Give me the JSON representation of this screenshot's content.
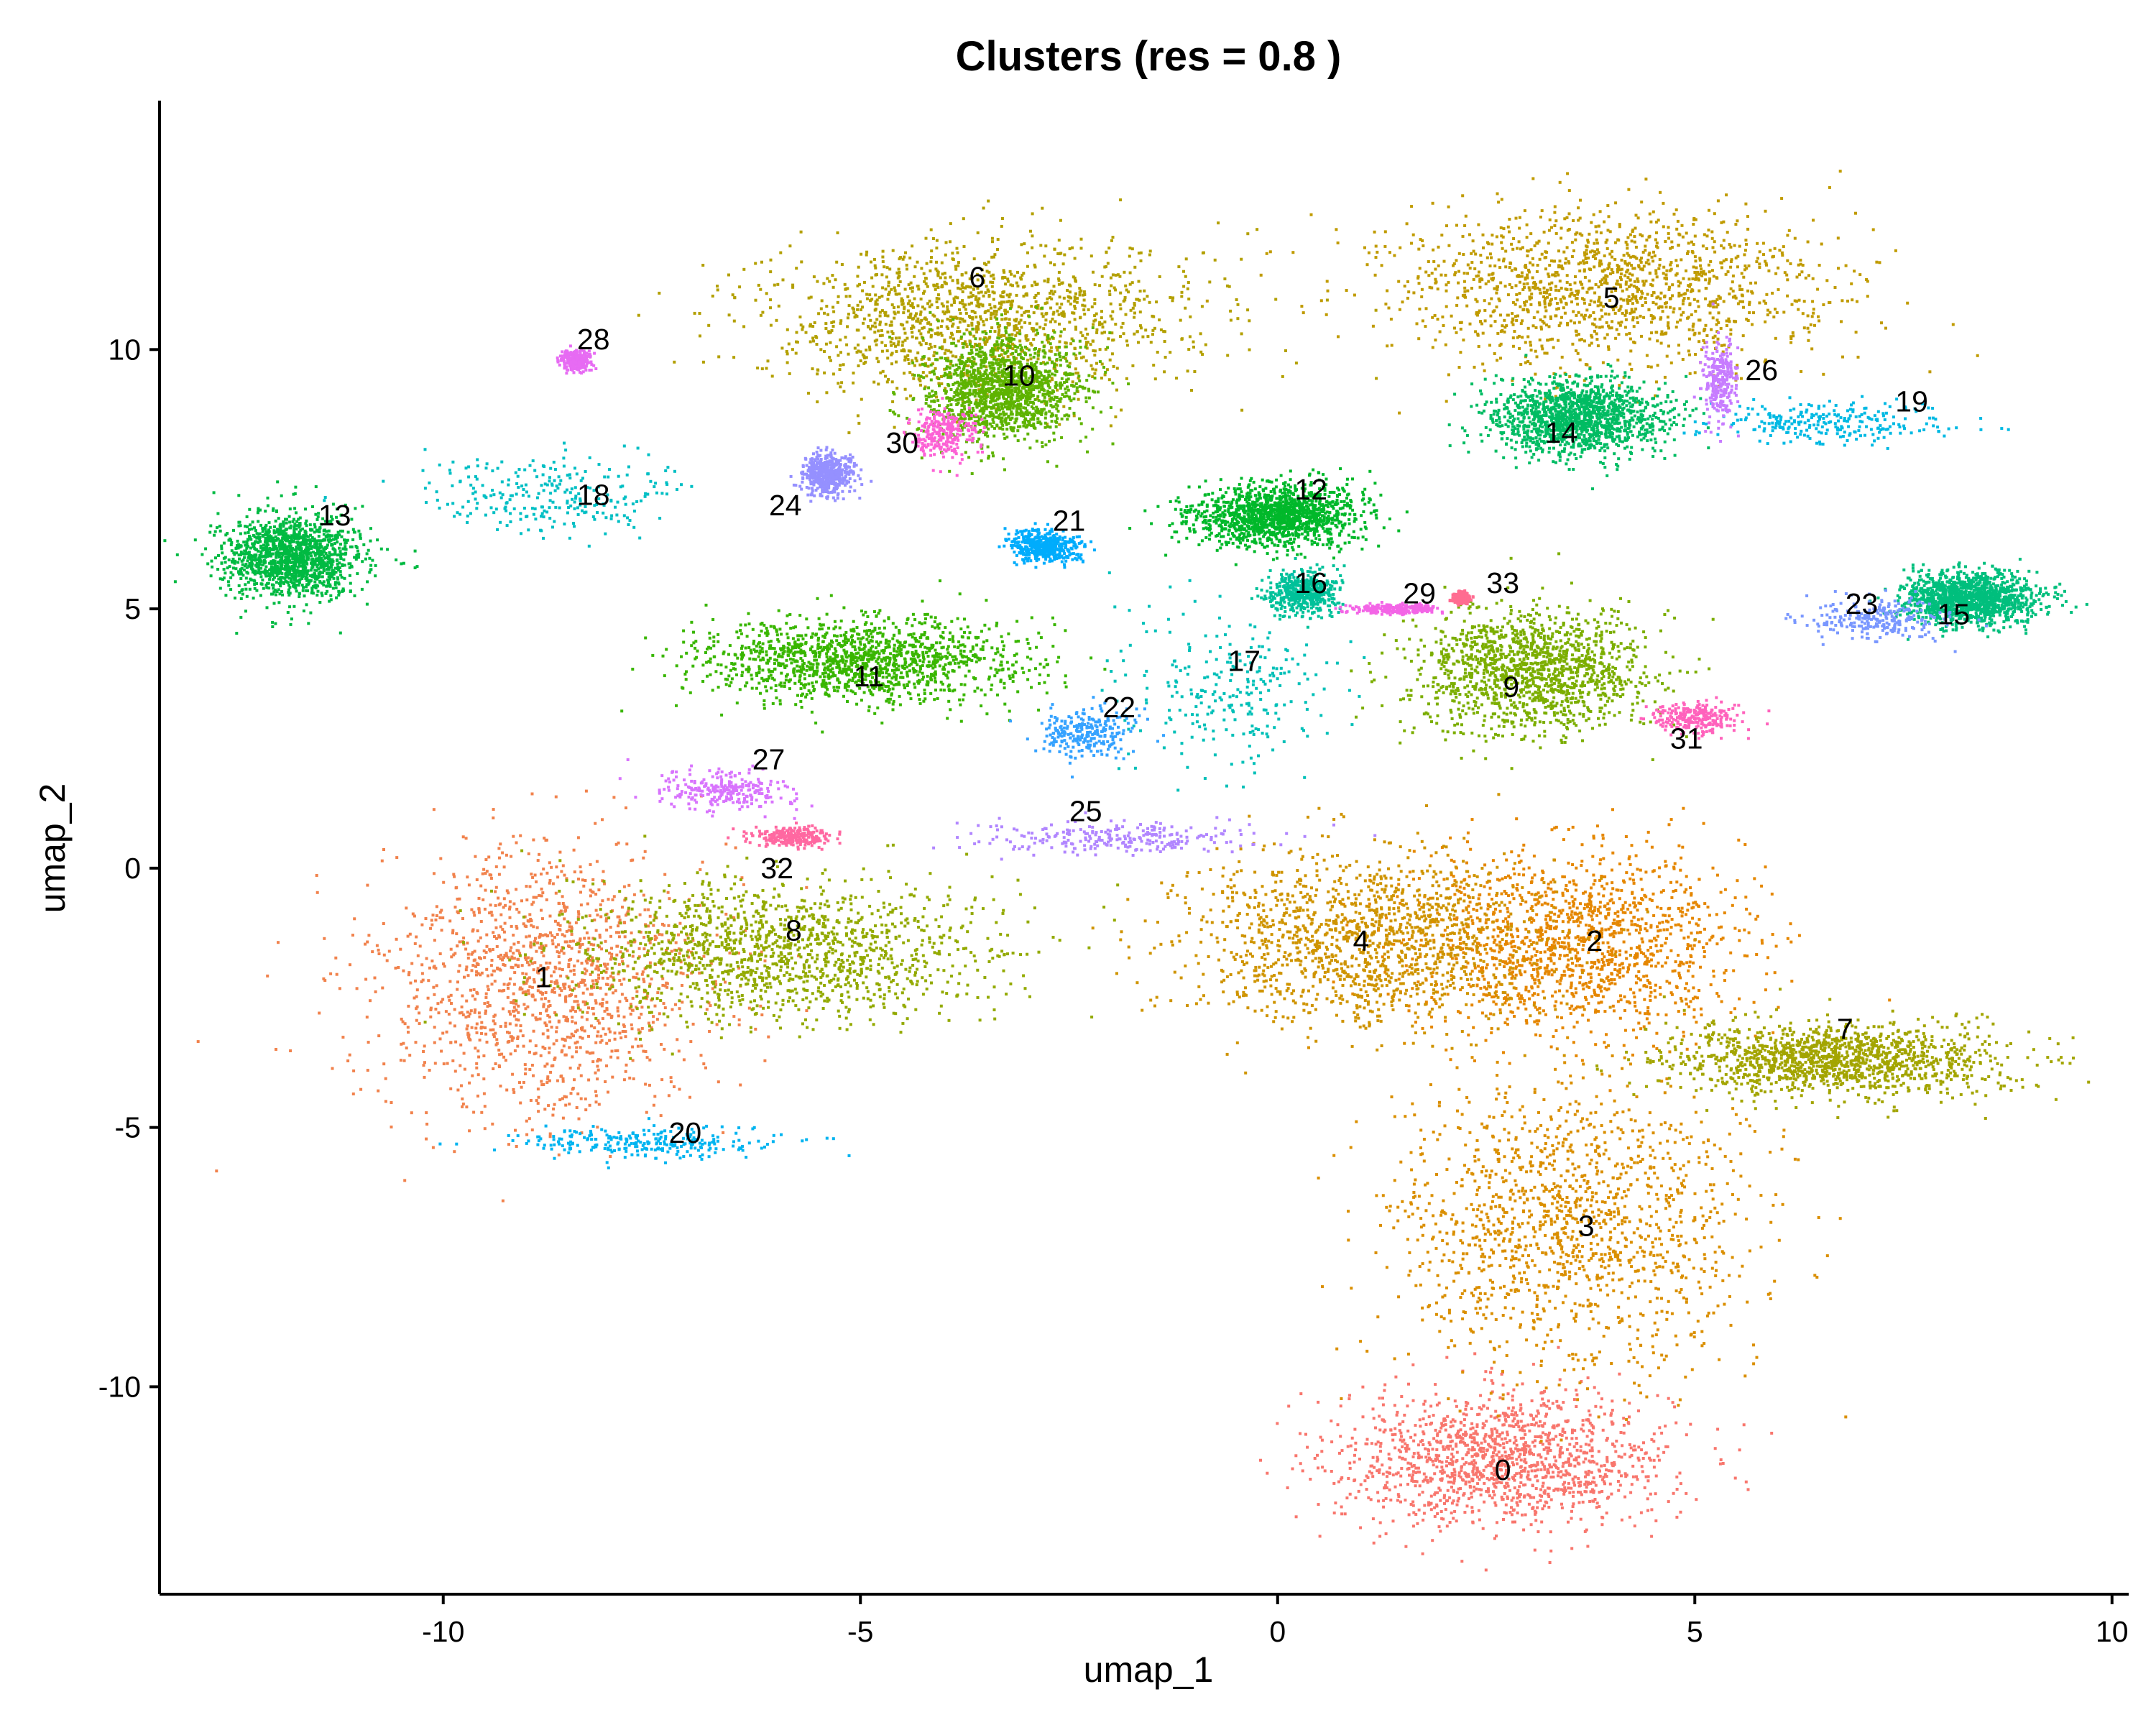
{
  "chart_data": {
    "type": "scatter",
    "title": "Clusters (res = 0.8 )",
    "xlabel": "umap_1",
    "ylabel": "umap_2",
    "xlim": [
      -13.4,
      10.2
    ],
    "ylim": [
      -14.0,
      14.8
    ],
    "xticks": [
      {
        "value": -10,
        "label": "-10"
      },
      {
        "value": -5,
        "label": "-5"
      },
      {
        "value": 0,
        "label": "0"
      },
      {
        "value": 5,
        "label": "5"
      },
      {
        "value": 10,
        "label": "10"
      }
    ],
    "yticks": [
      {
        "value": -10,
        "label": "-10"
      },
      {
        "value": -5,
        "label": "-5"
      },
      {
        "value": 0,
        "label": "0"
      },
      {
        "value": 5,
        "label": "5"
      },
      {
        "value": 10,
        "label": "10"
      }
    ],
    "grid": false,
    "legend": "none",
    "clusters": [
      {
        "id": "0",
        "label": "0",
        "color": "#F8766D",
        "center": [
          2.7,
          -11.4
        ],
        "spread": [
          2.0,
          1.3
        ],
        "density": "high"
      },
      {
        "id": "1",
        "label": "1",
        "color": "#F1824C",
        "center": [
          -8.8,
          -2.2
        ],
        "spread": [
          2.0,
          2.6
        ],
        "density": "high"
      },
      {
        "id": "2",
        "label": "2",
        "color": "#E58700",
        "center": [
          3.6,
          -1.4
        ],
        "spread": [
          2.0,
          1.7
        ],
        "density": "high"
      },
      {
        "id": "3",
        "label": "3",
        "color": "#DA8F00",
        "center": [
          3.5,
          -6.9
        ],
        "spread": [
          2.1,
          2.8
        ],
        "density": "high"
      },
      {
        "id": "4",
        "label": "4",
        "color": "#CF9400",
        "center": [
          1.0,
          -1.4
        ],
        "spread": [
          2.2,
          1.6
        ],
        "density": "high"
      },
      {
        "id": "5",
        "label": "5",
        "color": "#C09B00",
        "center": [
          3.9,
          11.2
        ],
        "spread": [
          2.7,
          1.5
        ],
        "density": "high"
      },
      {
        "id": "6",
        "label": "6",
        "color": "#B3A000",
        "center": [
          -3.7,
          10.6
        ],
        "spread": [
          2.6,
          1.5
        ],
        "density": "high"
      },
      {
        "id": "7",
        "label": "7",
        "color": "#A3A500",
        "center": [
          6.7,
          -3.7
        ],
        "spread": [
          2.0,
          0.7
        ],
        "density": "high"
      },
      {
        "id": "8",
        "label": "8",
        "color": "#93AA00",
        "center": [
          -6.0,
          -1.6
        ],
        "spread": [
          2.5,
          1.3
        ],
        "density": "high"
      },
      {
        "id": "9",
        "label": "9",
        "color": "#7CAE00",
        "center": [
          3.0,
          3.8
        ],
        "spread": [
          1.4,
          1.2
        ],
        "density": "high"
      },
      {
        "id": "10",
        "label": "10",
        "color": "#5EB300",
        "center": [
          -3.3,
          9.2
        ],
        "spread": [
          0.9,
          1.0
        ],
        "density": "high"
      },
      {
        "id": "11",
        "label": "11",
        "color": "#39B600",
        "center": [
          -5.0,
          4.0
        ],
        "spread": [
          1.9,
          0.8
        ],
        "density": "high"
      },
      {
        "id": "12",
        "label": "12",
        "color": "#00B82A",
        "center": [
          0.0,
          6.8
        ],
        "spread": [
          1.0,
          0.6
        ],
        "density": "high"
      },
      {
        "id": "13",
        "label": "13",
        "color": "#00BA42",
        "center": [
          -11.8,
          6.0
        ],
        "spread": [
          0.8,
          0.8
        ],
        "density": "high"
      },
      {
        "id": "14",
        "label": "14",
        "color": "#00BC63",
        "center": [
          3.6,
          8.7
        ],
        "spread": [
          1.0,
          0.7
        ],
        "density": "high"
      },
      {
        "id": "15",
        "label": "15",
        "color": "#00BF7D",
        "center": [
          8.3,
          5.2
        ],
        "spread": [
          0.8,
          0.5
        ],
        "density": "high"
      },
      {
        "id": "16",
        "label": "16",
        "color": "#00C19A",
        "center": [
          0.3,
          5.3
        ],
        "spread": [
          0.4,
          0.4
        ],
        "density": "medium"
      },
      {
        "id": "17",
        "label": "17",
        "color": "#00C0B8",
        "center": [
          -0.6,
          3.4
        ],
        "spread": [
          1.3,
          1.5
        ],
        "density": "low"
      },
      {
        "id": "18",
        "label": "18",
        "color": "#00BFC4",
        "center": [
          -8.7,
          7.2
        ],
        "spread": [
          1.6,
          0.8
        ],
        "density": "low"
      },
      {
        "id": "19",
        "label": "19",
        "color": "#00B9E3",
        "center": [
          6.6,
          8.6
        ],
        "spread": [
          1.4,
          0.4
        ],
        "density": "low"
      },
      {
        "id": "20",
        "label": "20",
        "color": "#00B4F0",
        "center": [
          -7.6,
          -5.3
        ],
        "spread": [
          1.6,
          0.3
        ],
        "density": "low"
      },
      {
        "id": "21",
        "label": "21",
        "color": "#00ACFC",
        "center": [
          -2.8,
          6.2
        ],
        "spread": [
          0.4,
          0.3
        ],
        "density": "medium"
      },
      {
        "id": "22",
        "label": "22",
        "color": "#35A2FF",
        "center": [
          -2.3,
          2.6
        ],
        "spread": [
          0.6,
          0.5
        ],
        "density": "low"
      },
      {
        "id": "23",
        "label": "23",
        "color": "#7997FF",
        "center": [
          7.2,
          4.8
        ],
        "spread": [
          0.8,
          0.4
        ],
        "density": "low"
      },
      {
        "id": "24",
        "label": "24",
        "color": "#9590FF",
        "center": [
          -5.4,
          7.6
        ],
        "spread": [
          0.3,
          0.4
        ],
        "density": "medium"
      },
      {
        "id": "25",
        "label": "25",
        "color": "#B186FF",
        "center": [
          -1.9,
          0.6
        ],
        "spread": [
          1.8,
          0.3
        ],
        "density": "low"
      },
      {
        "id": "26",
        "label": "26",
        "color": "#C77CFF",
        "center": [
          5.3,
          9.4
        ],
        "spread": [
          0.2,
          0.8
        ],
        "density": "low"
      },
      {
        "id": "27",
        "label": "27",
        "color": "#D874FD",
        "center": [
          -6.6,
          1.5
        ],
        "spread": [
          0.8,
          0.4
        ],
        "density": "low"
      },
      {
        "id": "28",
        "label": "28",
        "color": "#E76BF3",
        "center": [
          -8.4,
          9.8
        ],
        "spread": [
          0.2,
          0.2
        ],
        "density": "low"
      },
      {
        "id": "29",
        "label": "29",
        "color": "#F365E6",
        "center": [
          1.4,
          5.0
        ],
        "spread": [
          0.5,
          0.1
        ],
        "density": "low"
      },
      {
        "id": "30",
        "label": "30",
        "color": "#FC61D5",
        "center": [
          -4.0,
          8.4
        ],
        "spread": [
          0.4,
          0.5
        ],
        "density": "low"
      },
      {
        "id": "31",
        "label": "31",
        "color": "#FF62BC",
        "center": [
          5.0,
          2.9
        ],
        "spread": [
          0.5,
          0.3
        ],
        "density": "low"
      },
      {
        "id": "32",
        "label": "32",
        "color": "#FF68A1",
        "center": [
          -5.8,
          0.6
        ],
        "spread": [
          0.5,
          0.2
        ],
        "density": "low"
      },
      {
        "id": "33",
        "label": "33",
        "color": "#FF6C91",
        "center": [
          2.2,
          5.2
        ],
        "spread": [
          0.1,
          0.1
        ],
        "density": "low"
      }
    ],
    "cluster_labels": [
      {
        "text": "0",
        "x": 2.7,
        "y": -11.6
      },
      {
        "text": "1",
        "x": -8.8,
        "y": -2.1
      },
      {
        "text": "2",
        "x": 3.8,
        "y": -1.4
      },
      {
        "text": "3",
        "x": 3.7,
        "y": -6.9
      },
      {
        "text": "4",
        "x": 1.0,
        "y": -1.4
      },
      {
        "text": "5",
        "x": 4.0,
        "y": 11.0
      },
      {
        "text": "6",
        "x": -3.6,
        "y": 11.4
      },
      {
        "text": "7",
        "x": 6.8,
        "y": -3.1
      },
      {
        "text": "8",
        "x": -5.8,
        "y": -1.2
      },
      {
        "text": "9",
        "x": 2.8,
        "y": 3.5
      },
      {
        "text": "10",
        "x": -3.1,
        "y": 9.5
      },
      {
        "text": "11",
        "x": -4.9,
        "y": 3.7
      },
      {
        "text": "12",
        "x": 0.4,
        "y": 7.3
      },
      {
        "text": "13",
        "x": -11.3,
        "y": 6.8
      },
      {
        "text": "14",
        "x": 3.4,
        "y": 8.4
      },
      {
        "text": "15",
        "x": 8.1,
        "y": 4.9
      },
      {
        "text": "16",
        "x": 0.4,
        "y": 5.5
      },
      {
        "text": "17",
        "x": -0.4,
        "y": 4.0
      },
      {
        "text": "18",
        "x": -8.2,
        "y": 7.2
      },
      {
        "text": "19",
        "x": 7.6,
        "y": 9.0
      },
      {
        "text": "20",
        "x": -7.1,
        "y": -5.1
      },
      {
        "text": "21",
        "x": -2.5,
        "y": 6.7
      },
      {
        "text": "22",
        "x": -1.9,
        "y": 3.1
      },
      {
        "text": "23",
        "x": 7.0,
        "y": 5.1
      },
      {
        "text": "24",
        "x": -5.9,
        "y": 7.0
      },
      {
        "text": "25",
        "x": -2.3,
        "y": 1.1
      },
      {
        "text": "26",
        "x": 5.8,
        "y": 9.6
      },
      {
        "text": "27",
        "x": -6.1,
        "y": 2.1
      },
      {
        "text": "28",
        "x": -8.2,
        "y": 10.2
      },
      {
        "text": "29",
        "x": 1.7,
        "y": 5.3
      },
      {
        "text": "30",
        "x": -4.5,
        "y": 8.2
      },
      {
        "text": "31",
        "x": 4.9,
        "y": 2.5
      },
      {
        "text": "32",
        "x": -6.0,
        "y": 0.0
      },
      {
        "text": "33",
        "x": 2.7,
        "y": 5.5
      }
    ]
  }
}
